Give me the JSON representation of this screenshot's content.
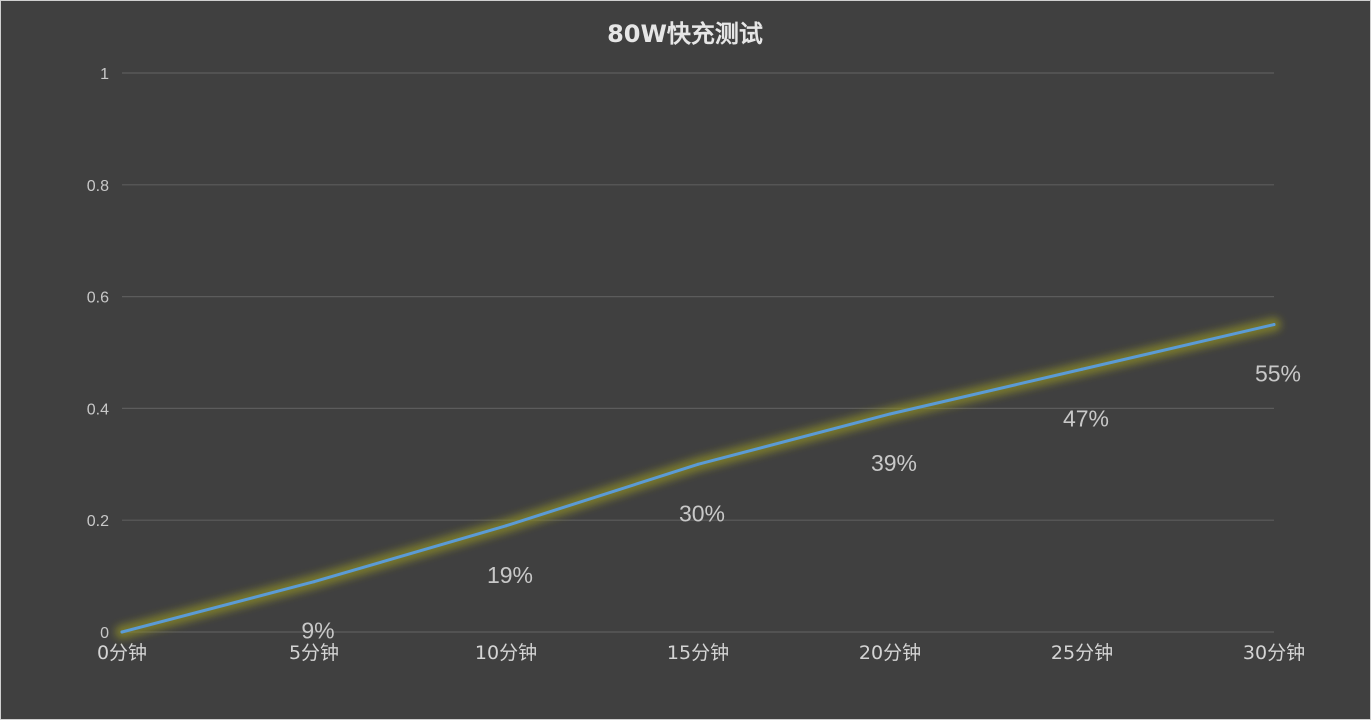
{
  "chart_data": {
    "type": "line",
    "title": "80W快充测试",
    "xlabel": "",
    "ylabel": "",
    "categories": [
      "0分钟",
      "5分钟",
      "10分钟",
      "15分钟",
      "20分钟",
      "25分钟",
      "30分钟"
    ],
    "series": [
      {
        "values": [
          0,
          0.09,
          0.19,
          0.3,
          0.39,
          0.47,
          0.55
        ],
        "data_labels": [
          "",
          "9%",
          "19%",
          "30%",
          "39%",
          "47%",
          "55%"
        ],
        "color": "#5b9bd5",
        "glow_color": "#8a8a2a"
      }
    ],
    "ylim": [
      0,
      1
    ],
    "yticks": [
      0,
      0.2,
      0.4,
      0.6,
      0.8,
      1
    ],
    "ytick_labels": [
      "0",
      "0.2",
      "0.4",
      "0.6",
      "0.8",
      "1"
    ],
    "grid": true,
    "legend": "none",
    "colors": {
      "background": "#404040",
      "gridline": "#5c5c5c",
      "text": "#d4d4d4"
    }
  }
}
